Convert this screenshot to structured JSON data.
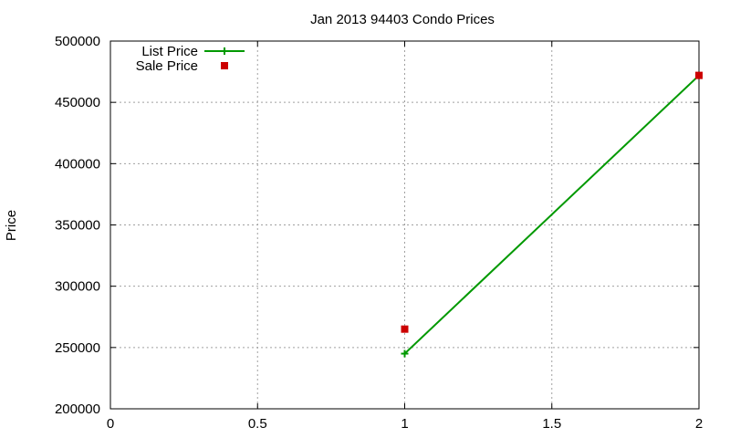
{
  "chart_data": {
    "type": "line",
    "title": "Jan 2013 94403 Condo Prices",
    "xlabel": "",
    "ylabel": "Price",
    "xlim": [
      0,
      2
    ],
    "ylim": [
      200000,
      500000
    ],
    "x_ticks": [
      0,
      0.5,
      1,
      1.5,
      2
    ],
    "x_tick_labels": [
      "0",
      "0.5",
      "1",
      "1.5",
      "2"
    ],
    "y_ticks": [
      200000,
      250000,
      300000,
      350000,
      400000,
      450000,
      500000
    ],
    "y_tick_labels": [
      "200000",
      "250000",
      "300000",
      "350000",
      "400000",
      "450000",
      "500000"
    ],
    "grid": true,
    "legend_position": "top-left",
    "series": [
      {
        "name": "List Price",
        "style": "linespoints",
        "marker": "plus",
        "color": "#009900",
        "points": [
          {
            "x": 1,
            "y": 245000
          },
          {
            "x": 2,
            "y": 472000
          }
        ]
      },
      {
        "name": "Sale Price",
        "style": "points",
        "marker": "square",
        "color": "#cc0000",
        "points": [
          {
            "x": 1,
            "y": 265000
          },
          {
            "x": 2,
            "y": 472000
          }
        ]
      }
    ]
  }
}
